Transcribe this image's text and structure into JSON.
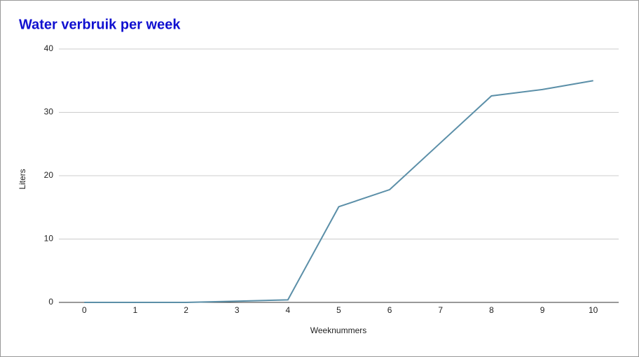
{
  "chart_data": {
    "type": "line",
    "title": "Water verbruik per week",
    "x_label": "Weeknummers",
    "y_label": "Liters",
    "x": [
      0,
      1,
      2,
      3,
      4,
      5,
      6,
      7,
      8,
      9,
      10
    ],
    "values": [
      0,
      0,
      0,
      0.2,
      0.4,
      15.1,
      17.8,
      25.2,
      32.6,
      33.6,
      35
    ],
    "color": "#5b8fa8",
    "xlim": [
      -0.5,
      10.5
    ],
    "xticks": [
      0,
      1,
      2,
      3,
      4,
      5,
      6,
      7,
      8,
      9,
      10
    ],
    "ylim": [
      0,
      40
    ],
    "yticks": [
      0,
      10,
      20,
      30,
      40
    ],
    "grid": true
  }
}
